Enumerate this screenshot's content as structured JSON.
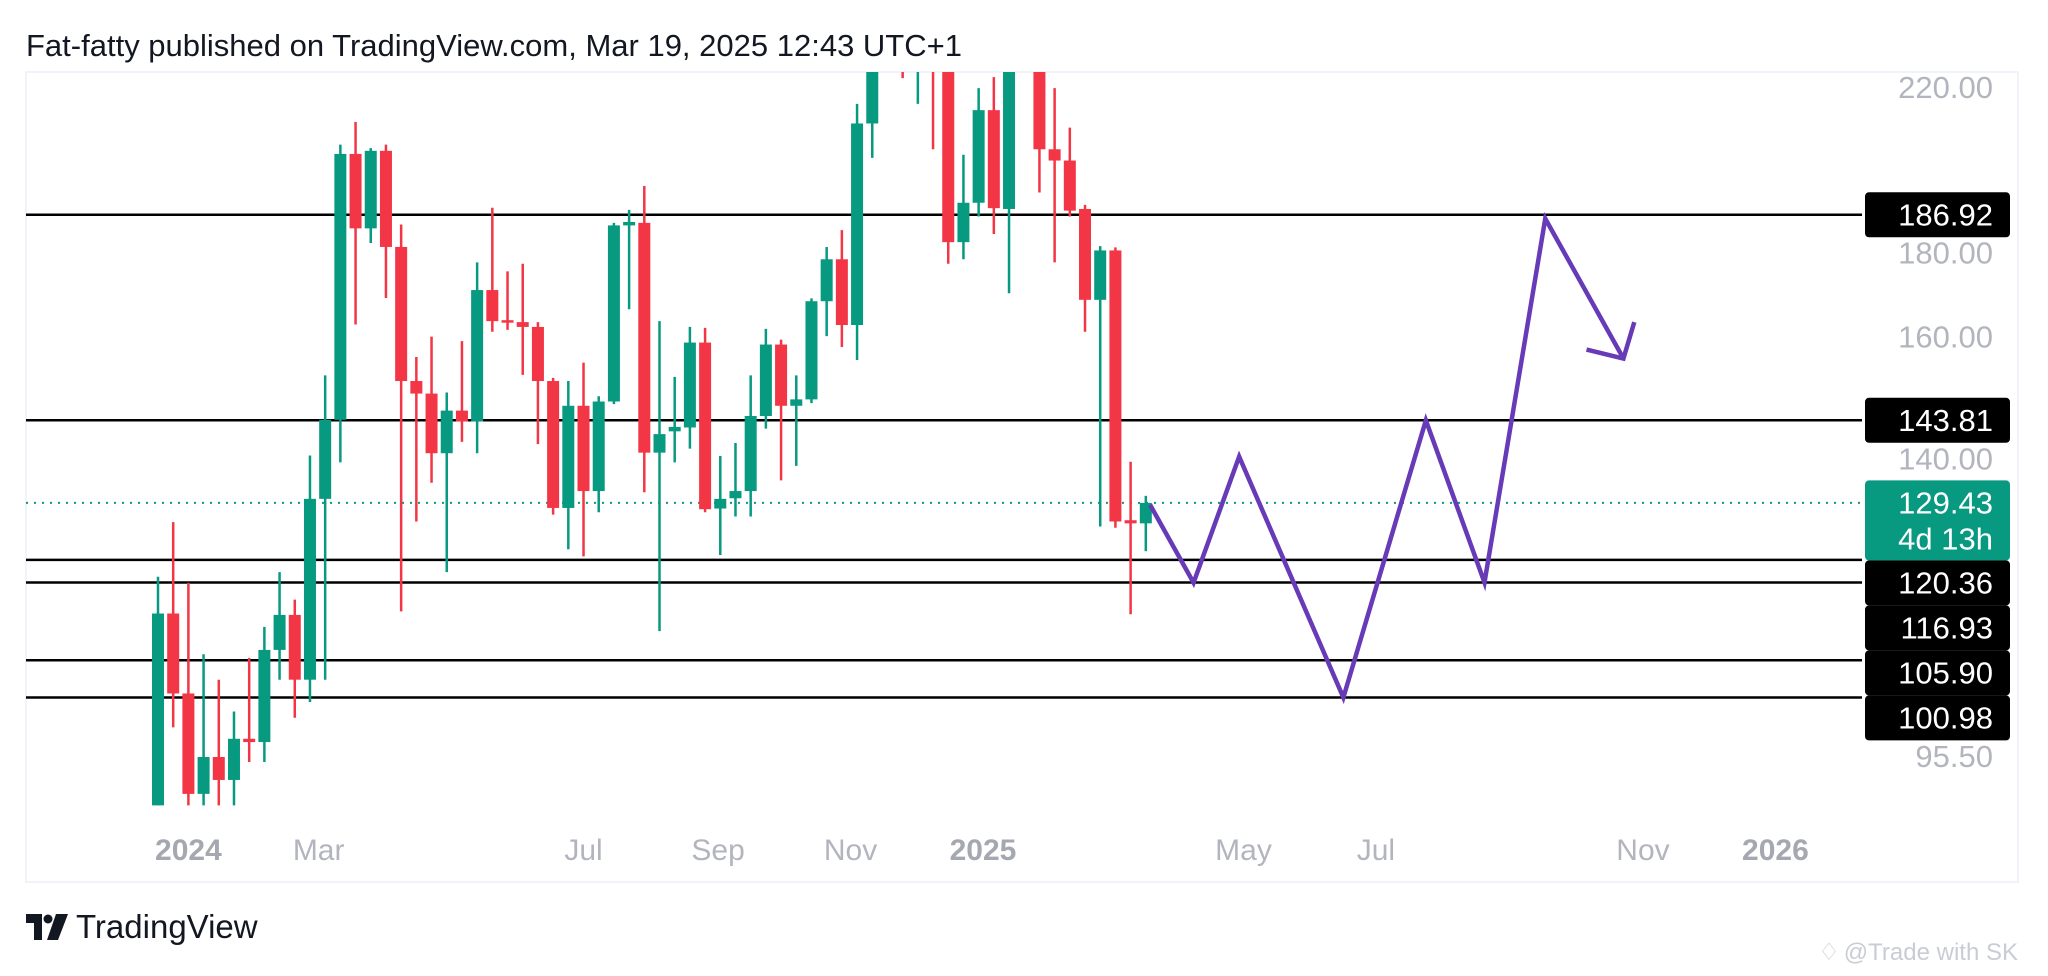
{
  "header": {
    "title": "Fat-fatty published on TradingView.com, Mar 19, 2025 12:43 UTC+1"
  },
  "footer": {
    "logo_text": "TradingView",
    "watermark": "@Trade with SK",
    "logo_icon": "tradingview-logo-icon",
    "watermark_icon": "diamond-icon"
  },
  "colors": {
    "up": "#089981",
    "down": "#f23645",
    "level_line": "#000000",
    "projection": "#673ab7",
    "last_price": "#089981",
    "axis_text": "#b2b5be"
  },
  "chart_data": {
    "type": "candlestick",
    "interval": "weekly",
    "y_scale": "log",
    "grid": false,
    "candle_fields": [
      "date",
      "open",
      "high",
      "low",
      "close"
    ],
    "candles": [
      [
        "2023-12-18",
        88,
        117.8,
        88,
        112.4
      ],
      [
        "2023-12-25",
        112.4,
        126.3,
        97.2,
        101.5
      ],
      [
        "2024-01-01",
        101.5,
        116.9,
        88,
        89.3
      ],
      [
        "2024-01-08",
        89.3,
        106.7,
        88,
        93.6
      ],
      [
        "2024-01-15",
        93.6,
        103.3,
        88,
        90.9
      ],
      [
        "2024-01-22",
        90.9,
        99.2,
        88,
        95.8
      ],
      [
        "2024-01-29",
        95.8,
        106.2,
        93,
        95.4
      ],
      [
        "2024-02-05",
        95.4,
        110.5,
        93,
        107.3
      ],
      [
        "2024-02-12",
        107.3,
        118.5,
        103.3,
        112.2
      ],
      [
        "2024-02-19",
        112.2,
        114.4,
        98.4,
        103.3
      ],
      [
        "2024-02-26",
        103.3,
        137.5,
        100.4,
        130.1
      ],
      [
        "2024-03-04",
        130.1,
        152.3,
        103.3,
        143.9
      ],
      [
        "2024-03-11",
        143.9,
        204.4,
        136.3,
        202
      ],
      [
        "2024-03-18",
        202,
        210.4,
        162.5,
        183.7
      ],
      [
        "2024-03-25",
        183.7,
        203.5,
        180.3,
        202.8
      ],
      [
        "2024-04-01",
        202.8,
        204.4,
        168.1,
        179.4
      ],
      [
        "2024-04-08",
        179.4,
        184.6,
        112.7,
        151.2
      ],
      [
        "2024-04-15",
        151.2,
        155.9,
        126.4,
        148.8
      ],
      [
        "2024-04-22",
        148.8,
        160,
        132.8,
        137.9
      ],
      [
        "2024-04-29",
        137.9,
        149,
        118.5,
        145.6
      ],
      [
        "2024-05-06",
        145.6,
        159.1,
        139.9,
        143.6
      ],
      [
        "2024-05-13",
        143.6,
        175.9,
        137.9,
        169.8
      ],
      [
        "2024-05-20",
        169.8,
        188.6,
        161,
        163.2
      ],
      [
        "2024-05-27",
        163.4,
        173.9,
        161.4,
        162.9
      ],
      [
        "2024-06-03",
        163,
        175.6,
        152.4,
        162
      ],
      [
        "2024-06-10",
        162,
        163,
        139.5,
        151.2
      ],
      [
        "2024-06-17",
        151.2,
        151.8,
        127.5,
        128.6
      ],
      [
        "2024-06-24",
        128.6,
        151.2,
        122,
        146.5
      ],
      [
        "2024-07-01",
        146.5,
        154.8,
        120.9,
        131.4
      ],
      [
        "2024-07-08",
        131.4,
        148.3,
        127.9,
        147.3
      ],
      [
        "2024-07-15",
        147.3,
        185,
        146.8,
        184.4
      ],
      [
        "2024-07-22",
        184.4,
        188.1,
        165.7,
        185.2
      ],
      [
        "2024-07-29",
        185,
        193.9,
        131.2,
        138
      ],
      [
        "2024-08-05",
        138,
        163.2,
        109.9,
        141.3
      ],
      [
        "2024-08-12",
        141.8,
        152,
        136.3,
        142.6
      ],
      [
        "2024-08-19",
        142.5,
        162,
        138.7,
        158.8
      ],
      [
        "2024-08-26",
        158.8,
        161.8,
        127.9,
        128.4
      ],
      [
        "2024-09-02",
        128.5,
        137.4,
        121.1,
        130.1
      ],
      [
        "2024-09-09",
        130.2,
        139.7,
        127.2,
        131.4
      ],
      [
        "2024-09-16",
        131.4,
        152.3,
        127.2,
        144.6
      ],
      [
        "2024-09-23",
        144.6,
        161.6,
        142.3,
        158.4
      ],
      [
        "2024-09-30",
        158.4,
        159.4,
        133.2,
        146.5
      ],
      [
        "2024-10-07",
        146.5,
        152.3,
        135.7,
        147.7
      ],
      [
        "2024-10-14",
        147.7,
        168,
        147,
        167.4
      ],
      [
        "2024-10-21",
        167.4,
        179.4,
        160.1,
        176.6
      ],
      [
        "2024-10-28",
        176.6,
        183.3,
        157.9,
        162.4
      ],
      [
        "2024-11-04",
        162.4,
        215.3,
        155.3,
        210
      ],
      [
        "2024-11-11",
        210,
        235,
        201,
        230
      ],
      [
        "2024-11-18",
        230,
        245,
        226,
        238
      ],
      [
        "2024-11-25",
        238,
        248,
        222.5,
        227
      ],
      [
        "2024-12-02",
        227,
        240,
        215.3,
        235
      ],
      [
        "2024-12-09",
        235,
        242,
        203.2,
        225
      ],
      [
        "2024-12-16",
        228,
        235,
        175.6,
        180.5
      ],
      [
        "2024-12-23",
        180.5,
        201.8,
        176.6,
        189.8
      ],
      [
        "2024-12-30",
        189.8,
        219.7,
        186.5,
        213.6
      ],
      [
        "2025-01-06",
        213.6,
        222.8,
        182.4,
        188.5
      ],
      [
        "2025-01-13",
        188.3,
        232,
        169.1,
        227
      ],
      [
        "2025-01-20",
        232,
        238,
        225,
        228
      ],
      [
        "2025-01-27",
        227,
        232,
        192.3,
        203.2
      ],
      [
        "2025-02-03",
        203.2,
        219.7,
        175.9,
        200.3
      ],
      [
        "2025-02-10",
        200.3,
        208.9,
        186.5,
        187.9
      ],
      [
        "2025-02-17",
        188.3,
        189.3,
        161,
        167.7
      ],
      [
        "2025-02-24",
        167.7,
        179.6,
        125.6,
        178.6
      ],
      [
        "2025-03-03",
        178.6,
        179.3,
        125.4,
        126.4
      ],
      [
        "2025-03-10",
        126.6,
        136.4,
        112.3,
        126.1
      ],
      [
        "2025-03-17",
        126.1,
        130.6,
        121.7,
        129.43
      ]
    ],
    "last_price": {
      "value": 129.43,
      "label": "129.43",
      "countdown": "4d 13h"
    },
    "levels": [
      {
        "value": 186.92,
        "label": "186.92"
      },
      {
        "value": 143.81,
        "label": "143.81"
      },
      {
        "value": 120.36,
        "label": "120.36"
      },
      {
        "value": 116.93,
        "label": "116.93"
      },
      {
        "value": 105.9,
        "label": "105.90"
      },
      {
        "value": 100.98,
        "label": "100.98"
      }
    ],
    "projection_path": [
      [
        "2025-03-19",
        129.1
      ],
      [
        "2025-04-08",
        116.9
      ],
      [
        "2025-04-29",
        137.3
      ],
      [
        "2025-06-16",
        100.98
      ],
      [
        "2025-07-24",
        143.81
      ],
      [
        "2025-08-20",
        116.93
      ],
      [
        "2025-09-17",
        186.0
      ],
      [
        "2025-10-23",
        155.6
      ]
    ],
    "projection_arrowhead": [
      [
        "2025-10-06",
        157.4
      ],
      [
        "2025-10-23",
        155.6
      ],
      [
        "2025-10-28",
        163
      ]
    ],
    "y_ticks": [
      {
        "value": 220,
        "label": "220.00"
      },
      {
        "value": 180,
        "label": "180.00"
      },
      {
        "value": 160,
        "label": "160.00"
      },
      {
        "value": 140,
        "label": "140.00"
      },
      {
        "value": 95.5,
        "label": "95.50"
      }
    ],
    "x_ticks": [
      {
        "date": "2024-01-01",
        "label": "2024",
        "year": true
      },
      {
        "date": "2024-03-01",
        "label": "Mar",
        "year": false
      },
      {
        "date": "2024-07-01",
        "label": "Jul",
        "year": false
      },
      {
        "date": "2024-09-01",
        "label": "Sep",
        "year": false
      },
      {
        "date": "2024-11-01",
        "label": "Nov",
        "year": false
      },
      {
        "date": "2025-01-01",
        "label": "2025",
        "year": true
      },
      {
        "date": "2025-05-01",
        "label": "May",
        "year": false
      },
      {
        "date": "2025-07-01",
        "label": "Jul",
        "year": false
      },
      {
        "date": "2025-11-01",
        "label": "Nov",
        "year": false
      },
      {
        "date": "2026-01-01",
        "label": "2026",
        "year": true
      }
    ]
  }
}
